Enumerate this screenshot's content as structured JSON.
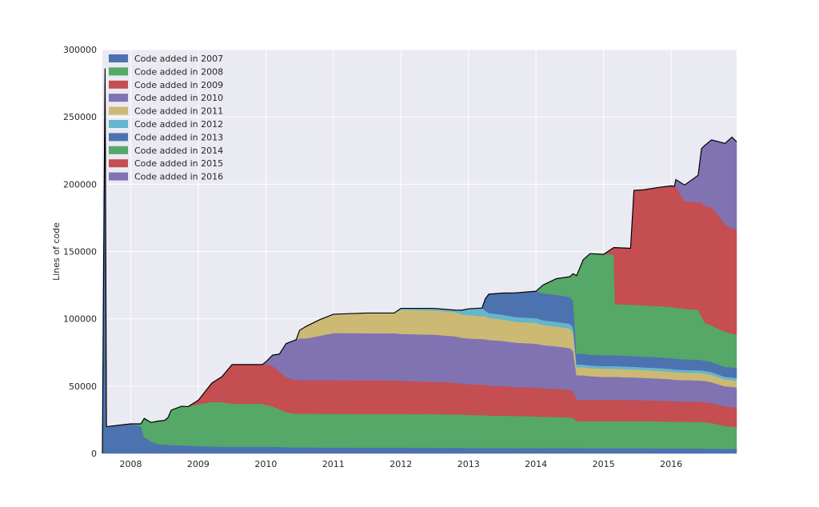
{
  "chart_data": {
    "type": "area",
    "stacked": true,
    "title": "",
    "xlabel": "",
    "ylabel": "Lines of code",
    "xlim": [
      2007.58,
      2016.97
    ],
    "ylim": [
      0,
      300000
    ],
    "x_ticks": [
      2008,
      2009,
      2010,
      2011,
      2012,
      2013,
      2014,
      2015,
      2016
    ],
    "x_tick_labels": [
      "2008",
      "2009",
      "2010",
      "2011",
      "2012",
      "2013",
      "2014",
      "2015",
      "2016"
    ],
    "y_ticks": [
      0,
      50000,
      100000,
      150000,
      200000,
      250000,
      300000
    ],
    "y_tick_labels": [
      "0",
      "50000",
      "100000",
      "150000",
      "200000",
      "250000",
      "300000"
    ],
    "grid": true,
    "legend_position": "top-left",
    "background": "#eaeaf2",
    "x": [
      2007.58,
      2007.6,
      2007.62,
      2007.64,
      2007.66,
      2008.0,
      2008.1,
      2008.15,
      2008.2,
      2008.3,
      2008.4,
      2008.5,
      2008.55,
      2008.6,
      2008.75,
      2008.85,
      2009.0,
      2009.2,
      2009.35,
      2009.5,
      2009.65,
      2009.8,
      2009.95,
      2010.0,
      2010.1,
      2010.2,
      2010.3,
      2010.45,
      2010.5,
      2010.6,
      2010.8,
      2011.0,
      2011.5,
      2011.9,
      2012.0,
      2012.5,
      2012.8,
      2012.9,
      2013.0,
      2013.2,
      2013.25,
      2013.3,
      2013.5,
      2013.7,
      2014.0,
      2014.1,
      2014.3,
      2014.5,
      2014.55,
      2014.6,
      2014.7,
      2014.8,
      2015.0,
      2015.15,
      2015.17,
      2015.4,
      2015.45,
      2015.6,
      2015.8,
      2016.0,
      2016.05,
      2016.07,
      2016.2,
      2016.4,
      2016.45,
      2016.5,
      2016.6,
      2016.8,
      2016.9,
      2016.97
    ],
    "series": [
      {
        "name": "Code added in 2007",
        "color": "#4c72b0",
        "values": [
          0,
          150000,
          286000,
          20000,
          20000,
          22000,
          21000,
          20000,
          12000,
          9000,
          7000,
          6500,
          6500,
          6200,
          6000,
          5800,
          5500,
          5200,
          5000,
          5000,
          5000,
          5000,
          5000,
          5000,
          5000,
          4800,
          4600,
          4500,
          4500,
          4500,
          4400,
          4400,
          4300,
          4300,
          4300,
          4200,
          4200,
          4200,
          4100,
          4100,
          4100,
          4100,
          4100,
          4000,
          4000,
          4000,
          4000,
          4000,
          4000,
          4000,
          4000,
          3900,
          3900,
          3900,
          3900,
          3900,
          3900,
          3900,
          3800,
          3800,
          3800,
          3800,
          3800,
          3700,
          3700,
          3600,
          3600,
          3500,
          3500,
          3500
        ]
      },
      {
        "name": "Code added in 2008",
        "color": "#55a868",
        "values": [
          0,
          0,
          0,
          0,
          0,
          0,
          1000,
          2000,
          14000,
          14000,
          17000,
          18000,
          20000,
          26000,
          29000,
          29000,
          31000,
          33000,
          33000,
          32000,
          32000,
          32000,
          32000,
          31000,
          30000,
          28000,
          26000,
          25000,
          25000,
          25000,
          25000,
          25000,
          25000,
          25000,
          25000,
          25000,
          24800,
          24700,
          24500,
          24300,
          24300,
          24000,
          24000,
          23800,
          23500,
          23200,
          23000,
          22800,
          22000,
          20000,
          20000,
          20000,
          20000,
          20000,
          20000,
          20000,
          20000,
          20000,
          20000,
          19800,
          19700,
          19700,
          19700,
          19700,
          19600,
          19500,
          19000,
          16800,
          16500,
          16000
        ]
      },
      {
        "name": "Code added in 2009",
        "color": "#c44e52",
        "values": [
          0,
          0,
          0,
          0,
          0,
          0,
          0,
          0,
          0,
          0,
          0,
          0,
          0,
          0,
          0,
          0,
          3000,
          14000,
          19000,
          29000,
          29000,
          29000,
          29000,
          30000,
          30000,
          28000,
          26000,
          25000,
          25000,
          25000,
          25000,
          25000,
          25000,
          25000,
          24500,
          24000,
          23500,
          23000,
          22800,
          22600,
          22500,
          22200,
          22000,
          21500,
          21500,
          21300,
          21000,
          20500,
          20000,
          16000,
          16000,
          16000,
          16000,
          16000,
          16000,
          15800,
          15800,
          15600,
          15500,
          15300,
          15200,
          15200,
          15000,
          15000,
          15000,
          15000,
          14800,
          14500,
          14500,
          14500
        ]
      },
      {
        "name": "Code added in 2010",
        "color": "#8172b2",
        "values": [
          0,
          0,
          0,
          0,
          0,
          0,
          0,
          0,
          0,
          0,
          0,
          0,
          0,
          0,
          0,
          0,
          0,
          0,
          0,
          0,
          0,
          0,
          0,
          2000,
          8000,
          13000,
          25000,
          30000,
          31000,
          31000,
          33000,
          35000,
          35000,
          35000,
          35000,
          35000,
          34500,
          34000,
          34000,
          34000,
          34000,
          34000,
          33500,
          33000,
          32500,
          32000,
          31500,
          31000,
          30000,
          18000,
          18000,
          17500,
          17000,
          17000,
          17000,
          16800,
          16800,
          16600,
          16400,
          16200,
          16000,
          16000,
          16000,
          15800,
          15800,
          15700,
          15500,
          15000,
          15000,
          15000
        ]
      },
      {
        "name": "Code added in 2011",
        "color": "#ccb974",
        "values": [
          0,
          0,
          0,
          0,
          0,
          0,
          0,
          0,
          0,
          0,
          0,
          0,
          0,
          0,
          0,
          0,
          0,
          0,
          0,
          0,
          0,
          0,
          0,
          0,
          0,
          0,
          0,
          0,
          6000,
          9000,
          12000,
          14000,
          15000,
          15000,
          18000,
          18000,
          18000,
          17500,
          17500,
          17000,
          17000,
          16500,
          16000,
          15500,
          15500,
          15000,
          14800,
          14500,
          14000,
          6000,
          6000,
          6000,
          6000,
          6000,
          6000,
          5900,
          5900,
          5800,
          5800,
          5700,
          5700,
          5700,
          5600,
          5600,
          5600,
          5500,
          5500,
          5000,
          5000,
          5000
        ]
      },
      {
        "name": "Code added in 2012",
        "color": "#64b5cd",
        "values": [
          0,
          0,
          0,
          0,
          0,
          0,
          0,
          0,
          0,
          0,
          0,
          0,
          0,
          0,
          0,
          0,
          0,
          0,
          0,
          0,
          0,
          0,
          0,
          0,
          0,
          0,
          0,
          0,
          0,
          0,
          0,
          0,
          0,
          0,
          1000,
          1500,
          1500,
          3000,
          4500,
          6000,
          4000,
          3500,
          3500,
          3500,
          3500,
          3500,
          3500,
          3500,
          3500,
          2000,
          2000,
          2000,
          2000,
          2000,
          2000,
          2000,
          2000,
          2000,
          2000,
          2000,
          2000,
          2000,
          2000,
          2000,
          2000,
          2000,
          2000,
          2000,
          2000,
          2000
        ]
      },
      {
        "name": "Code added in 2013",
        "color": "#4c72b0",
        "values": [
          0,
          0,
          0,
          0,
          0,
          0,
          0,
          0,
          0,
          0,
          0,
          0,
          0,
          0,
          0,
          0,
          0,
          0,
          0,
          0,
          0,
          0,
          0,
          0,
          0,
          0,
          0,
          0,
          0,
          0,
          0,
          0,
          0,
          0,
          0,
          0,
          0,
          0,
          0,
          0,
          9000,
          14000,
          16000,
          18000,
          20000,
          20000,
          20000,
          20000,
          20000,
          8000,
          8000,
          8000,
          8000,
          8000,
          8000,
          8000,
          8000,
          8000,
          8000,
          8000,
          8000,
          8000,
          7800,
          7800,
          7700,
          7600,
          7500,
          7500,
          7500,
          7500
        ]
      },
      {
        "name": "Code added in 2014",
        "color": "#55a868",
        "values": [
          0,
          0,
          0,
          0,
          0,
          0,
          0,
          0,
          0,
          0,
          0,
          0,
          0,
          0,
          0,
          0,
          0,
          0,
          0,
          0,
          0,
          0,
          0,
          0,
          0,
          0,
          0,
          0,
          0,
          0,
          0,
          0,
          0,
          0,
          0,
          0,
          0,
          0,
          0,
          0,
          0,
          0,
          0,
          0,
          0,
          6000,
          12000,
          15000,
          20000,
          58000,
          70000,
          75000,
          75000,
          75000,
          38000,
          38000,
          38000,
          38000,
          38000,
          38000,
          38000,
          38000,
          37500,
          37000,
          32000,
          28000,
          27000,
          26000,
          25000,
          25000
        ]
      },
      {
        "name": "Code added in 2015",
        "color": "#c44e52",
        "values": [
          0,
          0,
          0,
          0,
          0,
          0,
          0,
          0,
          0,
          0,
          0,
          0,
          0,
          0,
          0,
          0,
          0,
          0,
          0,
          0,
          0,
          0,
          0,
          0,
          0,
          0,
          0,
          0,
          0,
          0,
          0,
          0,
          0,
          0,
          0,
          0,
          0,
          0,
          0,
          0,
          0,
          0,
          0,
          0,
          0,
          0,
          0,
          0,
          0,
          0,
          0,
          0,
          0,
          5000,
          42000,
          42000,
          85000,
          86000,
          88000,
          90000,
          90000,
          90000,
          80000,
          80000,
          85000,
          87000,
          88000,
          80000,
          78000,
          78000
        ]
      },
      {
        "name": "Code added in 2016",
        "color": "#8172b2",
        "values": [
          0,
          0,
          0,
          0,
          0,
          0,
          0,
          0,
          0,
          0,
          0,
          0,
          0,
          0,
          0,
          0,
          0,
          0,
          0,
          0,
          0,
          0,
          0,
          0,
          0,
          0,
          0,
          0,
          0,
          0,
          0,
          0,
          0,
          0,
          0,
          0,
          0,
          0,
          0,
          0,
          0,
          0,
          0,
          0,
          0,
          0,
          0,
          0,
          0,
          0,
          0,
          0,
          0,
          0,
          0,
          0,
          0,
          0,
          0,
          0,
          0,
          5000,
          12000,
          20000,
          40000,
          45000,
          50000,
          60000,
          68000,
          65000
        ]
      }
    ]
  }
}
